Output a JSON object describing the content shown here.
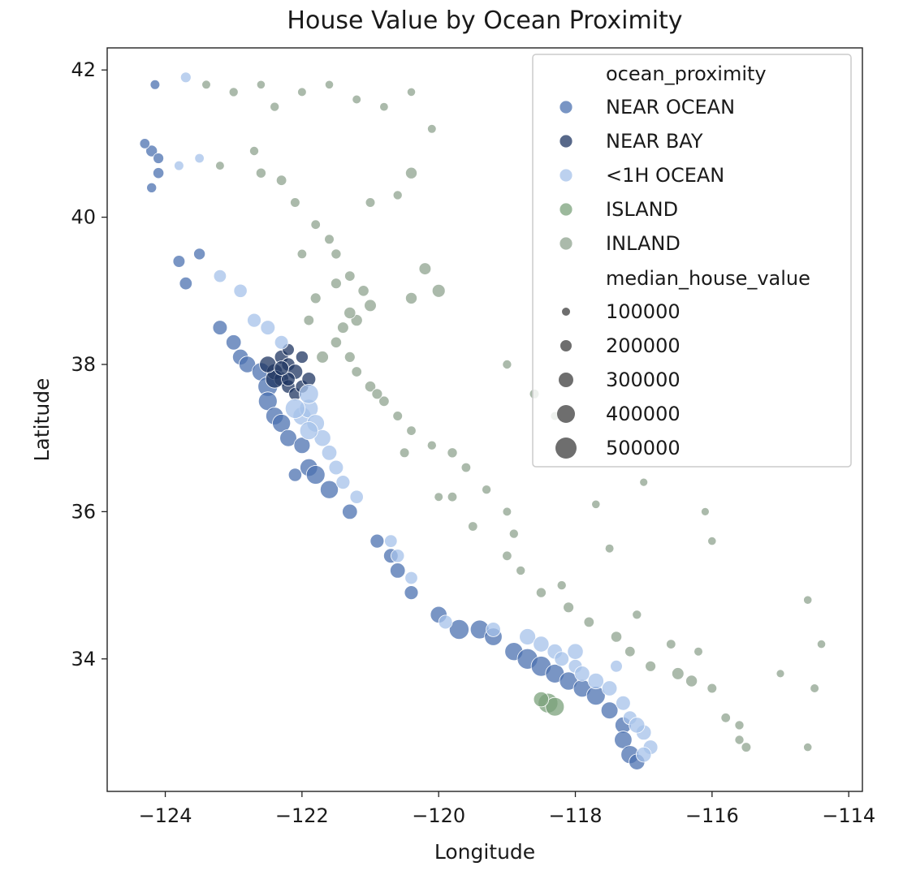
{
  "chart_data": {
    "type": "scatter",
    "title": "House Value by Ocean Proximity",
    "xlabel": "Longitude",
    "ylabel": "Latitude",
    "xlim": [
      -124.85,
      -113.8
    ],
    "ylim": [
      32.2,
      42.3
    ],
    "xticks": [
      -124,
      -122,
      -120,
      -118,
      -116,
      -114
    ],
    "xtick_labels": [
      "−124",
      "−122",
      "−120",
      "−118",
      "−116",
      "−114"
    ],
    "yticks": [
      34,
      36,
      38,
      40,
      42
    ],
    "ytick_labels": [
      "34",
      "36",
      "38",
      "40",
      "42"
    ],
    "grid": false,
    "legend": {
      "placement": "top-right",
      "hue_title": "ocean_proximity",
      "size_title": "median_house_value",
      "size_values": [
        "100000",
        "200000",
        "300000",
        "400000",
        "500000"
      ]
    },
    "series": [
      {
        "name": "NEAR OCEAN",
        "color": "#4c72b0",
        "points": [
          [
            -124.2,
            40.9,
            180000
          ],
          [
            -124.1,
            40.8,
            150000
          ],
          [
            -124.15,
            41.8,
            120000
          ],
          [
            -124.1,
            40.6,
            160000
          ],
          [
            -123.8,
            39.4,
            200000
          ],
          [
            -123.7,
            39.1,
            220000
          ],
          [
            -123.2,
            38.5,
            280000
          ],
          [
            -123.0,
            38.3,
            300000
          ],
          [
            -122.9,
            38.1,
            320000
          ],
          [
            -122.8,
            38.0,
            350000
          ],
          [
            -122.6,
            37.9,
            400000
          ],
          [
            -122.5,
            37.7,
            450000
          ],
          [
            -122.5,
            37.5,
            420000
          ],
          [
            -122.4,
            37.3,
            380000
          ],
          [
            -122.3,
            37.2,
            400000
          ],
          [
            -122.2,
            37.0,
            360000
          ],
          [
            -122.0,
            36.9,
            340000
          ],
          [
            -121.9,
            36.6,
            380000
          ],
          [
            -121.8,
            36.5,
            420000
          ],
          [
            -121.6,
            36.3,
            400000
          ],
          [
            -121.3,
            36.0,
            300000
          ],
          [
            -120.9,
            35.6,
            260000
          ],
          [
            -120.7,
            35.4,
            280000
          ],
          [
            -120.6,
            35.2,
            300000
          ],
          [
            -120.4,
            34.9,
            260000
          ],
          [
            -120.0,
            34.6,
            350000
          ],
          [
            -119.7,
            34.4,
            450000
          ],
          [
            -119.4,
            34.4,
            420000
          ],
          [
            -119.2,
            34.3,
            380000
          ],
          [
            -118.9,
            34.1,
            400000
          ],
          [
            -118.7,
            34.0,
            480000
          ],
          [
            -118.5,
            33.9,
            460000
          ],
          [
            -118.3,
            33.8,
            420000
          ],
          [
            -118.1,
            33.7,
            400000
          ],
          [
            -117.9,
            33.6,
            380000
          ],
          [
            -117.7,
            33.5,
            420000
          ],
          [
            -117.5,
            33.3,
            360000
          ],
          [
            -117.3,
            33.1,
            340000
          ],
          [
            -117.3,
            32.9,
            380000
          ],
          [
            -117.2,
            32.7,
            400000
          ],
          [
            -117.1,
            32.6,
            320000
          ],
          [
            -122.1,
            36.5,
            240000
          ],
          [
            -123.5,
            39.5,
            180000
          ],
          [
            -124.3,
            41.0,
            140000
          ],
          [
            -124.2,
            40.4,
            130000
          ]
        ]
      },
      {
        "name": "NEAR BAY",
        "color": "#1f3561",
        "points": [
          [
            -122.3,
            38.1,
            260000
          ],
          [
            -122.2,
            38.0,
            240000
          ],
          [
            -122.4,
            37.9,
            320000
          ],
          [
            -122.3,
            37.8,
            280000
          ],
          [
            -122.2,
            37.7,
            240000
          ],
          [
            -122.1,
            37.6,
            220000
          ],
          [
            -122.4,
            37.8,
            400000
          ],
          [
            -122.1,
            37.9,
            300000
          ],
          [
            -122.2,
            37.8,
            250000
          ],
          [
            -122.0,
            37.7,
            230000
          ],
          [
            -122.5,
            38.0,
            350000
          ],
          [
            -122.3,
            37.95,
            280000
          ],
          [
            -121.9,
            37.8,
            260000
          ],
          [
            -122.2,
            38.2,
            200000
          ],
          [
            -122.0,
            38.1,
            210000
          ]
        ]
      },
      {
        "name": "<1H OCEAN",
        "color": "#a6c1ea",
        "points": [
          [
            -123.2,
            39.2,
            220000
          ],
          [
            -122.9,
            39.0,
            240000
          ],
          [
            -122.7,
            38.6,
            260000
          ],
          [
            -122.5,
            38.5,
            280000
          ],
          [
            -122.3,
            38.3,
            250000
          ],
          [
            -122.0,
            37.3,
            400000
          ],
          [
            -121.9,
            37.4,
            420000
          ],
          [
            -121.8,
            37.2,
            380000
          ],
          [
            -121.7,
            37.0,
            350000
          ],
          [
            -121.9,
            37.1,
            400000
          ],
          [
            -122.1,
            37.4,
            450000
          ],
          [
            -121.6,
            36.8,
            300000
          ],
          [
            -121.5,
            36.6,
            280000
          ],
          [
            -121.4,
            36.4,
            260000
          ],
          [
            -121.2,
            36.2,
            240000
          ],
          [
            -120.7,
            35.6,
            220000
          ],
          [
            -120.6,
            35.4,
            240000
          ],
          [
            -120.4,
            35.1,
            220000
          ],
          [
            -119.9,
            34.5,
            260000
          ],
          [
            -119.2,
            34.4,
            280000
          ],
          [
            -118.7,
            34.3,
            340000
          ],
          [
            -118.5,
            34.2,
            320000
          ],
          [
            -118.3,
            34.1,
            300000
          ],
          [
            -118.2,
            34.0,
            280000
          ],
          [
            -118.0,
            33.9,
            260000
          ],
          [
            -117.9,
            33.8,
            300000
          ],
          [
            -117.7,
            33.7,
            320000
          ],
          [
            -117.5,
            33.6,
            300000
          ],
          [
            -117.3,
            33.4,
            280000
          ],
          [
            -117.2,
            33.2,
            260000
          ],
          [
            -117.0,
            33.0,
            300000
          ],
          [
            -116.9,
            32.8,
            280000
          ],
          [
            -117.1,
            33.1,
            320000
          ],
          [
            -117.0,
            32.7,
            300000
          ],
          [
            -118.0,
            34.1,
            320000
          ],
          [
            -117.4,
            33.9,
            200000
          ],
          [
            -123.7,
            41.9,
            150000
          ],
          [
            -123.8,
            40.7,
            120000
          ],
          [
            -123.5,
            40.8,
            110000
          ],
          [
            -121.9,
            37.6,
            440000
          ]
        ]
      },
      {
        "name": "ISLAND",
        "color": "#7ba27b",
        "points": [
          [
            -118.4,
            33.4,
            450000
          ],
          [
            -118.3,
            33.35,
            420000
          ],
          [
            -118.5,
            33.45,
            300000
          ]
        ]
      },
      {
        "name": "INLAND",
        "color": "#8fa38f",
        "points": [
          [
            -123.4,
            41.8,
            90000
          ],
          [
            -123.0,
            41.7,
            100000
          ],
          [
            -122.6,
            41.8,
            80000
          ],
          [
            -122.4,
            41.5,
            100000
          ],
          [
            -122.0,
            41.7,
            90000
          ],
          [
            -121.6,
            41.8,
            80000
          ],
          [
            -121.2,
            41.6,
            90000
          ],
          [
            -120.8,
            41.5,
            85000
          ],
          [
            -120.4,
            41.7,
            80000
          ],
          [
            -120.1,
            41.2,
            90000
          ],
          [
            -122.6,
            40.6,
            130000
          ],
          [
            -122.3,
            40.5,
            140000
          ],
          [
            -122.1,
            40.2,
            120000
          ],
          [
            -121.8,
            39.9,
            110000
          ],
          [
            -121.6,
            39.7,
            120000
          ],
          [
            -121.5,
            39.5,
            130000
          ],
          [
            -121.3,
            39.2,
            140000
          ],
          [
            -121.1,
            39.0,
            160000
          ],
          [
            -121.0,
            38.8,
            200000
          ],
          [
            -121.2,
            38.6,
            180000
          ],
          [
            -121.4,
            38.5,
            170000
          ],
          [
            -121.5,
            38.3,
            160000
          ],
          [
            -121.3,
            38.1,
            150000
          ],
          [
            -121.2,
            37.9,
            140000
          ],
          [
            -121.0,
            37.7,
            160000
          ],
          [
            -120.8,
            37.5,
            140000
          ],
          [
            -120.6,
            37.3,
            120000
          ],
          [
            -120.4,
            37.1,
            110000
          ],
          [
            -120.1,
            36.9,
            100000
          ],
          [
            -119.8,
            36.8,
            130000
          ],
          [
            -119.6,
            36.6,
            110000
          ],
          [
            -119.3,
            36.3,
            100000
          ],
          [
            -119.0,
            36.0,
            90000
          ],
          [
            -118.9,
            35.7,
            100000
          ],
          [
            -119.0,
            35.4,
            110000
          ],
          [
            -118.8,
            35.2,
            100000
          ],
          [
            -118.5,
            34.9,
            130000
          ],
          [
            -118.1,
            34.7,
            150000
          ],
          [
            -117.8,
            34.5,
            140000
          ],
          [
            -117.4,
            34.3,
            160000
          ],
          [
            -117.2,
            34.1,
            140000
          ],
          [
            -116.9,
            33.9,
            150000
          ],
          [
            -116.5,
            33.8,
            200000
          ],
          [
            -116.3,
            33.7,
            180000
          ],
          [
            -116.0,
            33.6,
            120000
          ],
          [
            -115.8,
            33.2,
            110000
          ],
          [
            -115.6,
            32.9,
            100000
          ],
          [
            -115.5,
            32.8,
            120000
          ],
          [
            -114.6,
            34.8,
            80000
          ],
          [
            -114.5,
            33.6,
            90000
          ],
          [
            -114.6,
            32.8,
            80000
          ],
          [
            -115.0,
            33.8,
            70000
          ],
          [
            -114.4,
            34.2,
            80000
          ],
          [
            -116.1,
            36.0,
            70000
          ],
          [
            -116.0,
            35.6,
            80000
          ],
          [
            -117.0,
            36.4,
            70000
          ],
          [
            -117.7,
            36.1,
            80000
          ],
          [
            -118.3,
            37.3,
            90000
          ],
          [
            -118.6,
            37.6,
            120000
          ],
          [
            -119.0,
            38.0,
            100000
          ],
          [
            -120.4,
            38.9,
            180000
          ],
          [
            -120.2,
            39.3,
            200000
          ],
          [
            -120.0,
            39.0,
            230000
          ],
          [
            -121.0,
            40.2,
            120000
          ],
          [
            -120.6,
            40.3,
            100000
          ],
          [
            -120.4,
            40.6,
            180000
          ],
          [
            -121.8,
            38.9,
            150000
          ],
          [
            -121.9,
            38.6,
            140000
          ],
          [
            -121.7,
            38.1,
            200000
          ],
          [
            -122.0,
            39.5,
            110000
          ],
          [
            -122.7,
            40.9,
            100000
          ],
          [
            -123.2,
            40.7,
            90000
          ],
          [
            -120.0,
            36.2,
            90000
          ],
          [
            -119.5,
            35.8,
            110000
          ],
          [
            -118.2,
            35.0,
            100000
          ],
          [
            -117.5,
            35.5,
            90000
          ],
          [
            -117.1,
            34.6,
            100000
          ],
          [
            -116.6,
            34.2,
            110000
          ],
          [
            -116.2,
            34.1,
            90000
          ],
          [
            -115.6,
            33.1,
            100000
          ],
          [
            -121.5,
            39.1,
            150000
          ],
          [
            -121.3,
            38.7,
            190000
          ],
          [
            -120.9,
            37.6,
            150000
          ],
          [
            -120.5,
            36.8,
            120000
          ],
          [
            -119.8,
            36.2,
            110000
          ]
        ]
      }
    ]
  }
}
